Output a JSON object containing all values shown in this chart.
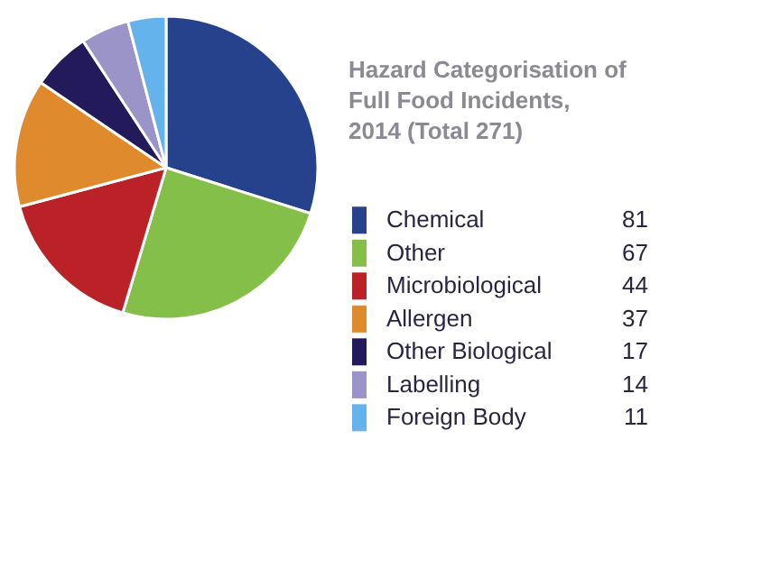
{
  "chart_data": {
    "type": "pie",
    "title": "Hazard Categorisation of Full Food Incidents, 2014 (Total 271)",
    "categories": [
      "Chemical",
      "Other",
      "Microbiological",
      "Allergen",
      "Other Biological",
      "Labelling",
      "Foreign Body"
    ],
    "values": [
      81,
      67,
      44,
      37,
      17,
      14,
      11
    ],
    "colors": [
      "#27428c",
      "#84bf4a",
      "#bb2227",
      "#e08a2e",
      "#221a5a",
      "#9b94c8",
      "#64b3ec"
    ],
    "data_labels": true,
    "legend": "right"
  }
}
